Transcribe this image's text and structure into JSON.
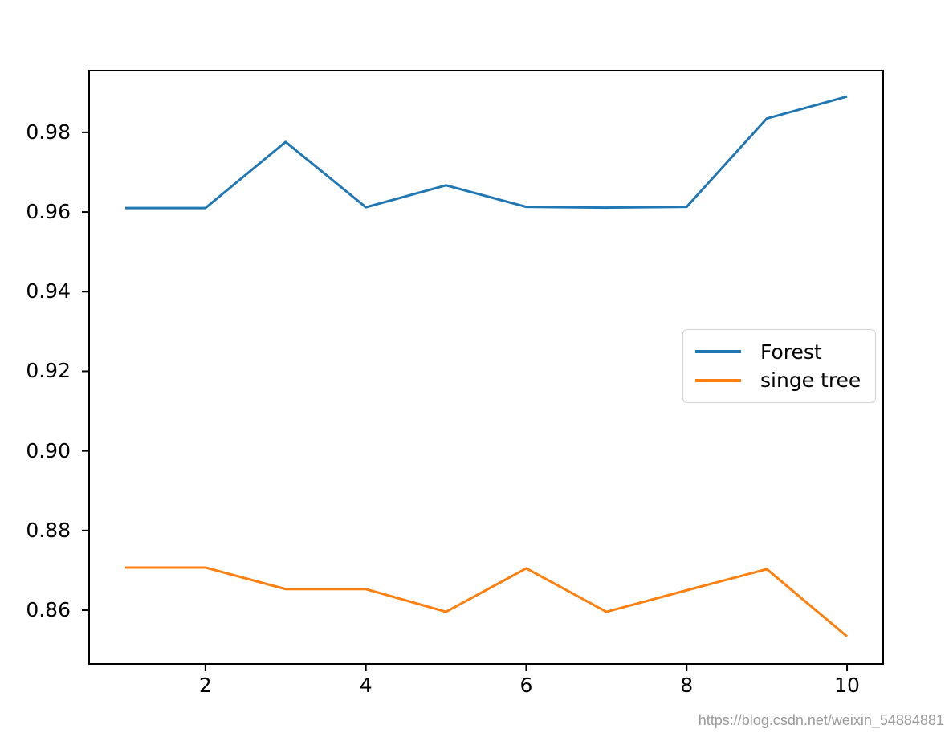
{
  "watermark": "https://blog.csdn.net/weixin_54884881",
  "chart_data": {
    "type": "line",
    "title": "",
    "xlabel": "",
    "ylabel": "",
    "grid": false,
    "background": "#ffffff",
    "x": [
      1,
      2,
      3,
      4,
      5,
      6,
      7,
      8,
      9,
      10
    ],
    "series": [
      {
        "name": "Forest",
        "color": "#1f77b4",
        "values": [
          0.961,
          0.961,
          0.9776,
          0.9612,
          0.9667,
          0.9613,
          0.9611,
          0.9613,
          0.9835,
          0.989
        ]
      },
      {
        "name": "singe tree",
        "color": "#ff7f0e",
        "values": [
          0.8707,
          0.8707,
          0.8653,
          0.8653,
          0.8596,
          0.8705,
          0.8596,
          0.865,
          0.8703,
          0.8534
        ]
      }
    ],
    "xlim": [
      0.55,
      10.45
    ],
    "ylim": [
      0.8465,
      0.9955
    ],
    "xticks": [
      2,
      4,
      6,
      8,
      10
    ],
    "yticks": [
      0.86,
      0.88,
      0.9,
      0.92,
      0.94,
      0.96,
      0.98
    ],
    "legend_position": "center right",
    "axis_color": "#000000"
  }
}
